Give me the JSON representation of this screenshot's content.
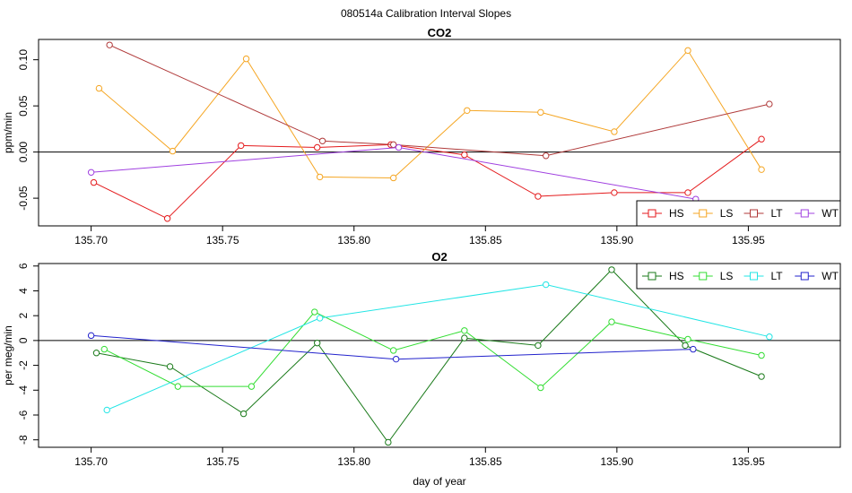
{
  "figure_title": "080514a   Calibration Interval Slopes",
  "chart_data": [
    {
      "id": "co2",
      "type": "line",
      "title": "CO2",
      "xlabel": "",
      "ylabel": "ppm/min",
      "xlim": [
        135.68,
        135.985
      ],
      "ylim": [
        -0.08,
        0.122
      ],
      "xticks": [
        135.7,
        135.75,
        135.8,
        135.85,
        135.9,
        135.95
      ],
      "xtick_labels": [
        "135.70",
        "135.75",
        "135.80",
        "135.85",
        "135.90",
        "135.95"
      ],
      "yticks": [
        -0.05,
        0.0,
        0.05,
        0.1
      ],
      "ytick_labels": [
        "-0.05",
        "0.00",
        "0.05",
        "0.10"
      ],
      "hline": 0,
      "legend": {
        "position": "bottom-right",
        "entries": [
          "HS",
          "LS",
          "LT",
          "WT"
        ]
      },
      "series": [
        {
          "name": "HS",
          "color": "#e41a1c",
          "x": [
            135.701,
            135.729,
            135.757,
            135.786,
            135.814,
            135.842,
            135.87,
            135.899,
            135.927,
            135.955
          ],
          "y": [
            -0.033,
            -0.072,
            0.007,
            0.005,
            0.008,
            -0.003,
            -0.048,
            -0.044,
            -0.044,
            0.014
          ]
        },
        {
          "name": "LS",
          "color": "#f5a623",
          "x": [
            135.703,
            135.731,
            135.759,
            135.787,
            135.815,
            135.843,
            135.871,
            135.899,
            135.927,
            135.955
          ],
          "y": [
            0.069,
            0.001,
            0.101,
            -0.027,
            -0.028,
            0.045,
            0.043,
            0.022,
            0.11,
            -0.019
          ]
        },
        {
          "name": "LT",
          "color": "#b03a3a",
          "x": [
            135.707,
            135.788,
            135.815,
            135.873,
            135.958
          ],
          "y": [
            0.116,
            0.012,
            0.008,
            -0.004,
            0.052
          ]
        },
        {
          "name": "WT",
          "color": "#a040e0",
          "x": [
            135.7,
            135.817,
            135.93
          ],
          "y": [
            -0.022,
            0.005,
            -0.051
          ]
        }
      ]
    },
    {
      "id": "o2",
      "type": "line",
      "title": "O2",
      "xlabel": "day of year",
      "ylabel": "per meg/min",
      "xlim": [
        135.68,
        135.985
      ],
      "ylim": [
        -8.6,
        6.2
      ],
      "xticks": [
        135.7,
        135.75,
        135.8,
        135.85,
        135.9,
        135.95
      ],
      "xtick_labels": [
        "135.70",
        "135.75",
        "135.80",
        "135.85",
        "135.90",
        "135.95"
      ],
      "yticks": [
        -8,
        -6,
        -4,
        -2,
        0,
        2,
        4,
        6
      ],
      "ytick_labels": [
        "-8",
        "-6",
        "-4",
        "-2",
        "0",
        "2",
        "4",
        "6"
      ],
      "hline": 0,
      "legend": {
        "position": "top-right",
        "entries": [
          "HS",
          "LS",
          "LT",
          "WT"
        ]
      },
      "series": [
        {
          "name": "HS",
          "color": "#1a7a1a",
          "x": [
            135.702,
            135.73,
            135.758,
            135.786,
            135.813,
            135.842,
            135.87,
            135.898,
            135.926,
            135.955
          ],
          "y": [
            -1.0,
            -2.1,
            -5.9,
            -0.2,
            -8.2,
            0.2,
            -0.4,
            5.7,
            -0.4,
            -2.9
          ]
        },
        {
          "name": "LS",
          "color": "#33dd33",
          "x": [
            135.705,
            135.733,
            135.761,
            135.785,
            135.815,
            135.842,
            135.871,
            135.898,
            135.927,
            135.955
          ],
          "y": [
            -0.7,
            -3.7,
            -3.7,
            2.3,
            -0.8,
            0.8,
            -3.8,
            1.5,
            0.1,
            -1.2
          ]
        },
        {
          "name": "LT",
          "color": "#22e5e5",
          "x": [
            135.706,
            135.787,
            135.873,
            135.958
          ],
          "y": [
            -5.6,
            1.8,
            4.5,
            0.3
          ]
        },
        {
          "name": "WT",
          "color": "#2222cc",
          "x": [
            135.7,
            135.816,
            135.929
          ],
          "y": [
            0.4,
            -1.5,
            -0.7
          ]
        }
      ]
    }
  ]
}
